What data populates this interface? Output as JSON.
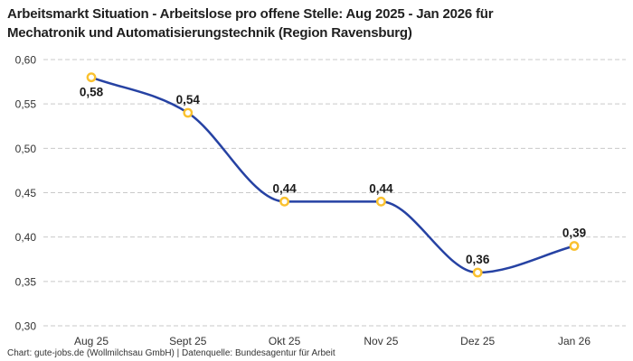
{
  "header": {
    "title_line1": "Arbeitsmarkt Situation - Arbeitslose pro offene Stelle: Aug 2025 - Jan 2026 für",
    "title_line2": "Mechatronik und Automatisierungstechnik (Region Ravensburg)"
  },
  "chart_data": {
    "type": "line",
    "title": "Arbeitsmarkt Situation - Arbeitslose pro offene Stelle: Aug 2025 - Jan 2026 für Mechatronik und Automatisierungstechnik (Region Ravensburg)",
    "categories": [
      "Aug 25",
      "Sept 25",
      "Okt 25",
      "Nov 25",
      "Dez 25",
      "Jan 26"
    ],
    "series": [
      {
        "name": "Arbeitslose pro offene Stelle",
        "values": [
          0.58,
          0.54,
          0.44,
          0.44,
          0.36,
          0.39
        ],
        "point_labels": [
          "0,58",
          "0,54",
          "0,44",
          "0,44",
          "0,36",
          "0,39"
        ],
        "point_label_positions": [
          "below",
          "above",
          "above",
          "above",
          "above",
          "above"
        ]
      }
    ],
    "xlabel": "",
    "ylabel": "",
    "ylim": [
      0.3,
      0.6
    ],
    "y_ticks": [
      {
        "v": 0.6,
        "label": "0,60"
      },
      {
        "v": 0.55,
        "label": "0,55"
      },
      {
        "v": 0.5,
        "label": "0,50"
      },
      {
        "v": 0.45,
        "label": "0,45"
      },
      {
        "v": 0.4,
        "label": "0,40"
      },
      {
        "v": 0.35,
        "label": "0,35"
      },
      {
        "v": 0.3,
        "label": "0,30"
      }
    ],
    "grid": "horizontal-dashed",
    "legend_position": "none",
    "colors": {
      "line": "#2642A3",
      "marker_stroke": "#FAC12E",
      "marker_fill": "#FFFFFF",
      "grid": "#C9C9C9",
      "axis_text": "#333333",
      "point_label_text": "#1A1A1A"
    }
  },
  "footer": {
    "text": "Chart: gute-jobs.de (Wollmilchsau GmbH) | Datenquelle: Bundesagentur für Arbeit"
  }
}
